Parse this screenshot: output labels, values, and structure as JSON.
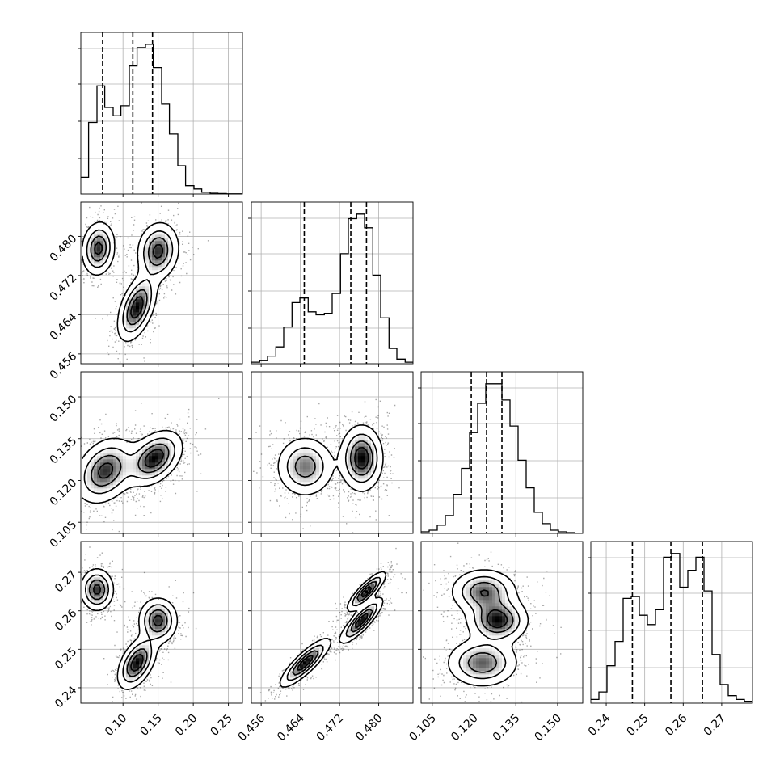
{
  "chart_data": {
    "type": "corner",
    "grid": true,
    "parameters": [
      {
        "range": [
          0.04,
          0.27
        ],
        "ticks": [
          "0.10",
          "0.15",
          "0.20",
          "0.25"
        ]
      },
      {
        "range": [
          0.454,
          0.487
        ],
        "ticks": [
          "0.456",
          "0.464",
          "0.472",
          "0.480"
        ]
      },
      {
        "range": [
          0.101,
          0.159
        ],
        "ticks": [
          "0.105",
          "0.120",
          "0.135",
          "0.150"
        ]
      },
      {
        "range": [
          0.236,
          0.278
        ],
        "ticks": [
          "0.24",
          "0.25",
          "0.26",
          "0.27"
        ]
      }
    ],
    "histograms": [
      {
        "param": 0,
        "bin_edges": [
          0.04,
          0.051,
          0.063,
          0.074,
          0.086,
          0.097,
          0.109,
          0.12,
          0.132,
          0.143,
          0.155,
          0.166,
          0.178,
          0.189,
          0.201,
          0.212,
          0.224,
          0.235,
          0.247,
          0.258,
          0.27
        ],
        "counts": [
          0.1,
          0.43,
          0.65,
          0.52,
          0.47,
          0.53,
          0.77,
          0.88,
          0.9,
          0.76,
          0.54,
          0.36,
          0.17,
          0.05,
          0.03,
          0.01,
          0.005,
          0.003,
          0.001,
          0.001
        ],
        "quantiles": [
          0.071,
          0.114,
          0.142
        ]
      },
      {
        "param": 1,
        "bin_edges": [
          0.454,
          0.4557,
          0.4573,
          0.459,
          0.4606,
          0.4623,
          0.4639,
          0.4656,
          0.4672,
          0.4689,
          0.4705,
          0.4722,
          0.4738,
          0.4755,
          0.4771,
          0.4788,
          0.4804,
          0.4821,
          0.4837,
          0.4854,
          0.487
        ],
        "counts": [
          0.01,
          0.02,
          0.05,
          0.11,
          0.24,
          0.4,
          0.43,
          0.34,
          0.32,
          0.33,
          0.46,
          0.72,
          0.95,
          0.98,
          0.89,
          0.58,
          0.3,
          0.1,
          0.03,
          0.01
        ],
        "quantiles": [
          0.4648,
          0.4743,
          0.4775
        ]
      },
      {
        "param": 2,
        "bin_edges": [
          0.101,
          0.1039,
          0.1068,
          0.1097,
          0.1126,
          0.1155,
          0.1184,
          0.1213,
          0.1242,
          0.1271,
          0.13,
          0.1329,
          0.1358,
          0.1387,
          0.1416,
          0.1445,
          0.1474,
          0.1503,
          0.1532,
          0.1561,
          0.159
        ],
        "counts": [
          0.01,
          0.02,
          0.05,
          0.11,
          0.24,
          0.4,
          0.62,
          0.8,
          0.92,
          0.92,
          0.82,
          0.66,
          0.45,
          0.28,
          0.13,
          0.06,
          0.02,
          0.01,
          0.005,
          0.002
        ],
        "quantiles": [
          0.119,
          0.1245,
          0.13
        ]
      },
      {
        "param": 3,
        "bin_edges": [
          0.236,
          0.2381,
          0.2402,
          0.2423,
          0.2444,
          0.2465,
          0.2486,
          0.2507,
          0.2528,
          0.2549,
          0.257,
          0.2591,
          0.2612,
          0.2633,
          0.2654,
          0.2675,
          0.2696,
          0.2717,
          0.2738,
          0.2759,
          0.278
        ],
        "counts": [
          0.02,
          0.06,
          0.2,
          0.33,
          0.56,
          0.57,
          0.47,
          0.42,
          0.5,
          0.78,
          0.8,
          0.62,
          0.71,
          0.78,
          0.6,
          0.26,
          0.1,
          0.04,
          0.02,
          0.01
        ],
        "quantiles": [
          0.2468,
          0.2568,
          0.265
        ]
      }
    ],
    "density_panels": [
      {
        "row": 1,
        "col": 0,
        "modes": [
          {
            "mx": 0.065,
            "my": 0.4775,
            "sx": 0.012,
            "sy": 0.0028,
            "rho": 0.1,
            "w": 1.0
          },
          {
            "mx": 0.15,
            "my": 0.477,
            "sx": 0.015,
            "sy": 0.003,
            "rho": 0.1,
            "w": 1.0
          },
          {
            "mx": 0.12,
            "my": 0.4655,
            "sx": 0.014,
            "sy": 0.0035,
            "rho": 0.5,
            "w": 1.1
          }
        ]
      },
      {
        "row": 2,
        "col": 0,
        "modes": [
          {
            "mx": 0.075,
            "my": 0.1235,
            "sx": 0.022,
            "sy": 0.006,
            "rho": 0.3,
            "w": 1.0
          },
          {
            "mx": 0.145,
            "my": 0.128,
            "sx": 0.02,
            "sy": 0.005,
            "rho": 0.4,
            "w": 1.1
          }
        ]
      },
      {
        "row": 2,
        "col": 1,
        "modes": [
          {
            "mx": 0.465,
            "my": 0.125,
            "sx": 0.003,
            "sy": 0.0055,
            "rho": 0.0,
            "w": 0.9
          },
          {
            "mx": 0.4765,
            "my": 0.128,
            "sx": 0.0022,
            "sy": 0.006,
            "rho": 0.0,
            "w": 1.2
          }
        ]
      },
      {
        "row": 3,
        "col": 0,
        "modes": [
          {
            "mx": 0.063,
            "my": 0.2655,
            "sx": 0.012,
            "sy": 0.0028,
            "rho": 0.0,
            "w": 1.0
          },
          {
            "mx": 0.15,
            "my": 0.2575,
            "sx": 0.014,
            "sy": 0.003,
            "rho": 0.0,
            "w": 1.0
          },
          {
            "mx": 0.12,
            "my": 0.2465,
            "sx": 0.014,
            "sy": 0.0035,
            "rho": 0.5,
            "w": 1.1
          }
        ]
      },
      {
        "row": 3,
        "col": 1,
        "modes": [
          {
            "mx": 0.465,
            "my": 0.2465,
            "sx": 0.0026,
            "sy": 0.0032,
            "rho": 0.85,
            "w": 1.0
          },
          {
            "mx": 0.4765,
            "my": 0.2575,
            "sx": 0.0022,
            "sy": 0.003,
            "rho": 0.85,
            "w": 1.0
          },
          {
            "mx": 0.4775,
            "my": 0.265,
            "sx": 0.002,
            "sy": 0.0026,
            "rho": 0.85,
            "w": 1.0
          }
        ]
      },
      {
        "row": 3,
        "col": 2,
        "modes": [
          {
            "mx": 0.1235,
            "my": 0.265,
            "sx": 0.006,
            "sy": 0.003,
            "rho": 0.0,
            "w": 1.0
          },
          {
            "mx": 0.1285,
            "my": 0.2575,
            "sx": 0.0055,
            "sy": 0.003,
            "rho": 0.0,
            "w": 1.2
          },
          {
            "mx": 0.123,
            "my": 0.2465,
            "sx": 0.0065,
            "sy": 0.0032,
            "rho": 0.0,
            "w": 1.0
          }
        ]
      }
    ]
  }
}
